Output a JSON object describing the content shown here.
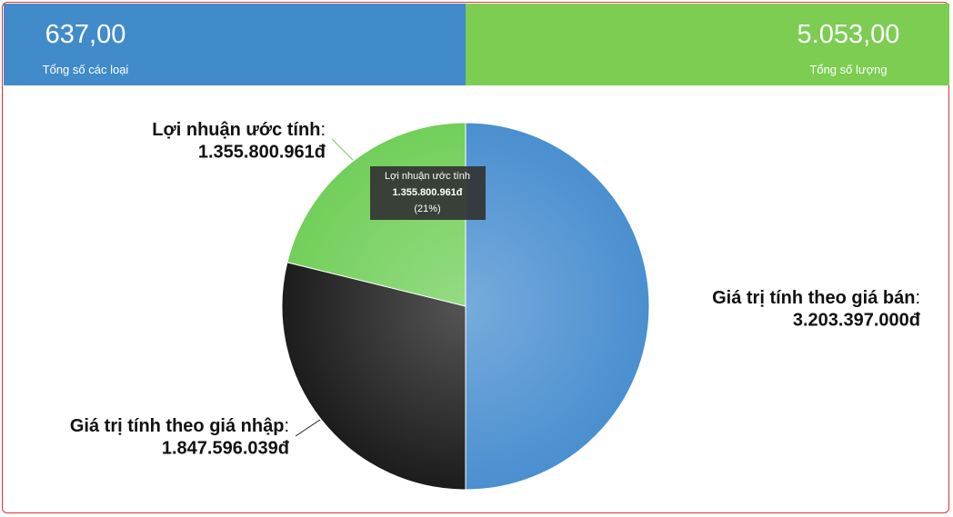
{
  "header": {
    "cards": [
      {
        "value": "637,00",
        "label": "Tổng số các loại",
        "color": "#428bca"
      },
      {
        "value": "5.053,00",
        "label": "Tổng số lượng",
        "color": "#7ccd52"
      }
    ]
  },
  "chart_data": {
    "type": "pie",
    "categories": [
      "Giá trị tính theo giá bán",
      "Giá trị tính theo giá nhập",
      "Lợi nhuận ước tính"
    ],
    "values": [
      3203397000,
      1847596039,
      1355800961
    ],
    "value_labels": [
      "3.203.397.000đ",
      "1.847.596.039đ",
      "1.355.800.961đ"
    ],
    "colors": [
      "#4a8fd0",
      "#1c1c1c",
      "#72cf5a"
    ],
    "label_separator": ":",
    "tooltip": {
      "title": "Lợi nhuận ước tính",
      "value": "1.355.800.961đ",
      "percent": "(21%)"
    }
  }
}
